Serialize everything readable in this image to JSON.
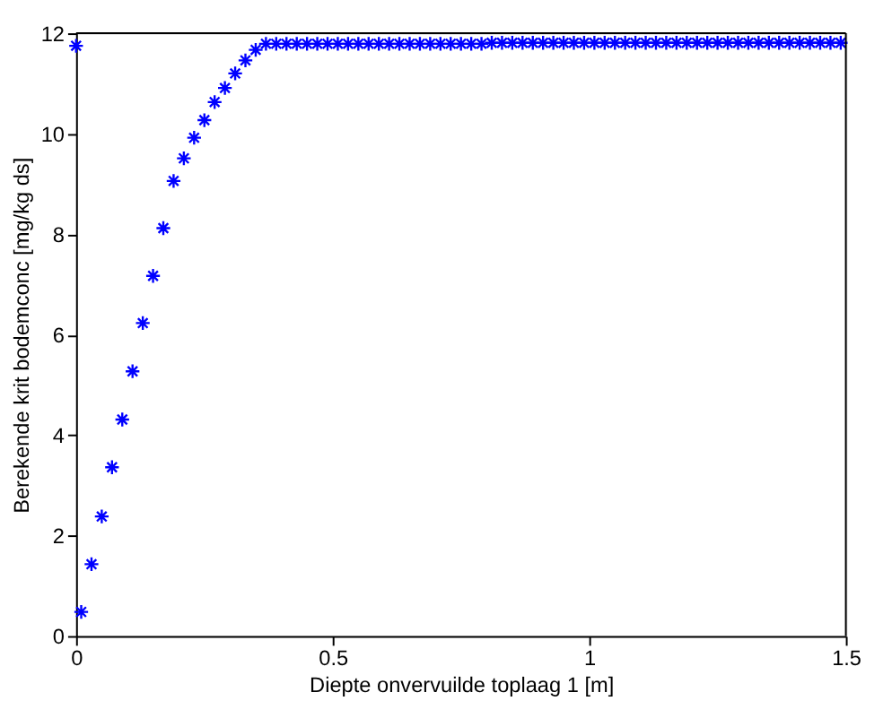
{
  "chart_data": {
    "type": "scatter",
    "xlabel": "Diepte onvervuilde toplaag 1 [m]",
    "ylabel": "Berekende krit bodemconc [mg/kg ds]",
    "x": [
      0,
      0.01,
      0.03,
      0.05,
      0.07,
      0.09,
      0.11,
      0.13,
      0.15,
      0.17,
      0.19,
      0.21,
      0.23,
      0.25,
      0.27,
      0.29,
      0.31,
      0.33,
      0.35,
      0.37,
      0.39,
      0.41,
      0.43,
      0.45,
      0.47,
      0.49,
      0.51,
      0.53,
      0.55,
      0.57,
      0.59,
      0.61,
      0.63,
      0.65,
      0.67,
      0.69,
      0.71,
      0.73,
      0.75,
      0.77,
      0.79,
      0.81,
      0.83,
      0.85,
      0.87,
      0.89,
      0.91,
      0.93,
      0.95,
      0.97,
      0.99,
      1.01,
      1.03,
      1.05,
      1.07,
      1.09,
      1.11,
      1.13,
      1.15,
      1.17,
      1.19,
      1.21,
      1.23,
      1.25,
      1.27,
      1.29,
      1.31,
      1.33,
      1.35,
      1.37,
      1.39,
      1.41,
      1.43,
      1.45,
      1.47,
      1.49
    ],
    "series": [
      {
        "color": "#0000ff",
        "values": [
          11.75,
          0.48,
          1.43,
          2.38,
          3.36,
          4.31,
          5.27,
          6.23,
          7.17,
          8.12,
          9.06,
          9.51,
          9.92,
          10.27,
          10.63,
          10.91,
          11.2,
          11.46,
          11.67,
          11.79,
          11.79,
          11.79,
          11.79,
          11.79,
          11.79,
          11.79,
          11.79,
          11.79,
          11.79,
          11.79,
          11.79,
          11.79,
          11.79,
          11.79,
          11.79,
          11.79,
          11.79,
          11.79,
          11.79,
          11.79,
          11.79,
          11.81,
          11.81,
          11.81,
          11.81,
          11.81,
          11.81,
          11.81,
          11.81,
          11.81,
          11.81,
          11.81,
          11.81,
          11.81,
          11.81,
          11.81,
          11.81,
          11.81,
          11.81,
          11.81,
          11.81,
          11.81,
          11.81,
          11.81,
          11.81,
          11.81,
          11.81,
          11.81,
          11.81,
          11.81,
          11.81,
          11.81,
          11.81,
          11.81,
          11.81,
          11.81
        ]
      }
    ],
    "xlim": [
      0,
      1.5
    ],
    "xticks": [
      0,
      0.5,
      1,
      1.5
    ],
    "ylim": [
      0,
      12
    ],
    "yticks": [
      0,
      2,
      4,
      6,
      8,
      10,
      12
    ],
    "marker": "cross",
    "grid": false
  }
}
